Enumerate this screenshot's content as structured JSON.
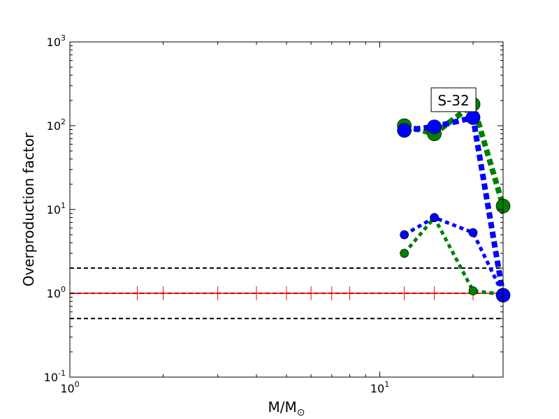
{
  "chart_data": {
    "type": "line",
    "title": "",
    "xlabel": "M/M",
    "xlabel_subscript": "⊙",
    "ylabel": "Overproduction factor",
    "x_scale": "log",
    "y_scale": "log",
    "xlim": [
      1,
      25
    ],
    "ylim": [
      0.1,
      1000
    ],
    "grid": false,
    "legend": "none",
    "x_ticks": [
      {
        "value": 1,
        "base": "10",
        "exp": "0"
      },
      {
        "value": 10,
        "base": "10",
        "exp": "1"
      }
    ],
    "y_ticks": [
      {
        "value": 0.1,
        "base": "10",
        "exp": "-1"
      },
      {
        "value": 1,
        "base": "10",
        "exp": "0"
      },
      {
        "value": 10,
        "base": "10",
        "exp": "1"
      },
      {
        "value": 100,
        "base": "10",
        "exp": "2"
      },
      {
        "value": 1000,
        "base": "10",
        "exp": "3"
      }
    ],
    "reference_lines": [
      {
        "y": 2.0,
        "color": "#000000",
        "style": "dashed"
      },
      {
        "y": 1.0,
        "color": "#000000",
        "style": "dashed"
      },
      {
        "y": 0.5,
        "color": "#000000",
        "style": "dashed"
      },
      {
        "y": 1.0,
        "color": "#ff0000",
        "style": "solid"
      }
    ],
    "reference_markers": {
      "y": 1.0,
      "color": "#ff0000",
      "x": [
        1.65,
        2,
        3,
        4,
        5,
        6,
        7,
        8,
        12,
        15,
        20,
        25
      ]
    },
    "series": [
      {
        "color": "#008000",
        "weight": "thick",
        "x": [
          12,
          15,
          20,
          25
        ],
        "y": [
          100,
          80,
          180,
          11
        ]
      },
      {
        "color": "#0000ff",
        "weight": "thick",
        "x": [
          12,
          15,
          20,
          25
        ],
        "y": [
          88,
          97,
          125,
          0.95
        ]
      },
      {
        "color": "#008000",
        "weight": "thin",
        "x": [
          12,
          15,
          20,
          25
        ],
        "y": [
          3,
          8,
          1.07,
          0.97
        ]
      },
      {
        "color": "#0000ff",
        "weight": "thin",
        "x": [
          12,
          15,
          20,
          25
        ],
        "y": [
          5,
          8,
          5.3,
          0.97
        ]
      }
    ],
    "annotations": [
      {
        "text": "S-32",
        "x": 17.3,
        "y": 200
      }
    ]
  }
}
